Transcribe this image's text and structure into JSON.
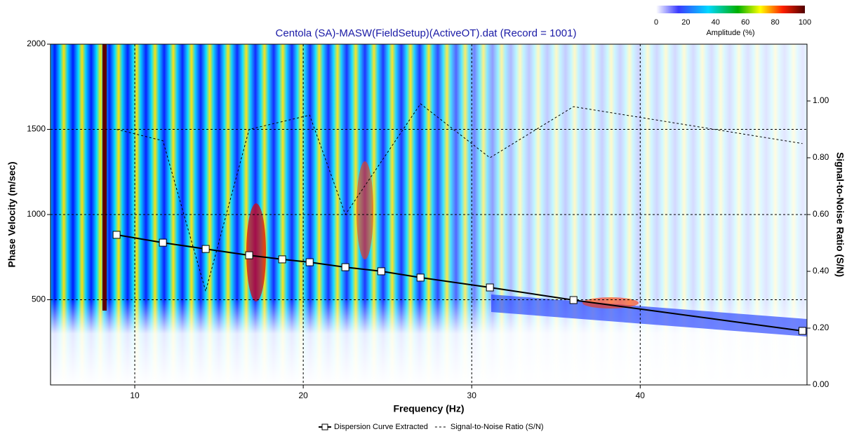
{
  "chart_data": {
    "type": "line",
    "title": "Centola (SA)-MASW(FieldSetup)(ActiveOT).dat (Record = 1001)",
    "x_label": "Frequency (Hz)",
    "y_label": "Phase Velocity (m/sec)",
    "y2_label": "Signal-to-Noise Ratio (S/N)",
    "xlim": [
      5,
      49.9
    ],
    "xticks": [
      10,
      20,
      30,
      40
    ],
    "ylim": [
      0,
      2000
    ],
    "yticks": [
      500,
      1000,
      1500,
      2000
    ],
    "y2lim": [
      0,
      1.2
    ],
    "y2ticks": [
      {
        "value": 0,
        "label": "0.00"
      },
      {
        "value": 0.2,
        "label": "0.20"
      },
      {
        "value": 0.4,
        "label": "0.40"
      },
      {
        "value": 0.6,
        "label": "0.60"
      },
      {
        "value": 0.8,
        "label": "0.80"
      },
      {
        "value": 1.0,
        "label": "1.00"
      }
    ],
    "grid": true,
    "series": [
      {
        "name": "Dispersion Curve Extracted",
        "color": "#000000",
        "marker": "square",
        "x": [
          8.92,
          11.67,
          14.21,
          16.79,
          18.75,
          20.38,
          22.5,
          24.63,
          26.96,
          31.08,
          36.04,
          49.63
        ],
        "values": [
          881,
          835,
          798,
          761,
          737,
          720,
          691,
          667,
          630,
          572,
          498,
          317
        ]
      },
      {
        "name": "Signal-to-Noise Ratio (S/N)",
        "color": "#000000",
        "axis": "y2",
        "dashed": true,
        "x": [
          8.92,
          11.67,
          14.21,
          16.79,
          20.38,
          22.5,
          26.96,
          31.08,
          36.04,
          49.63
        ],
        "values": [
          0.9,
          0.86,
          0.33,
          0.9,
          0.95,
          0.6,
          0.99,
          0.8,
          0.98,
          0.85
        ]
      }
    ],
    "colorbar": {
      "label": "Amplitude (%)",
      "lim": [
        0,
        100
      ],
      "ticks": [
        0,
        20,
        40,
        60,
        80,
        100
      ]
    }
  }
}
